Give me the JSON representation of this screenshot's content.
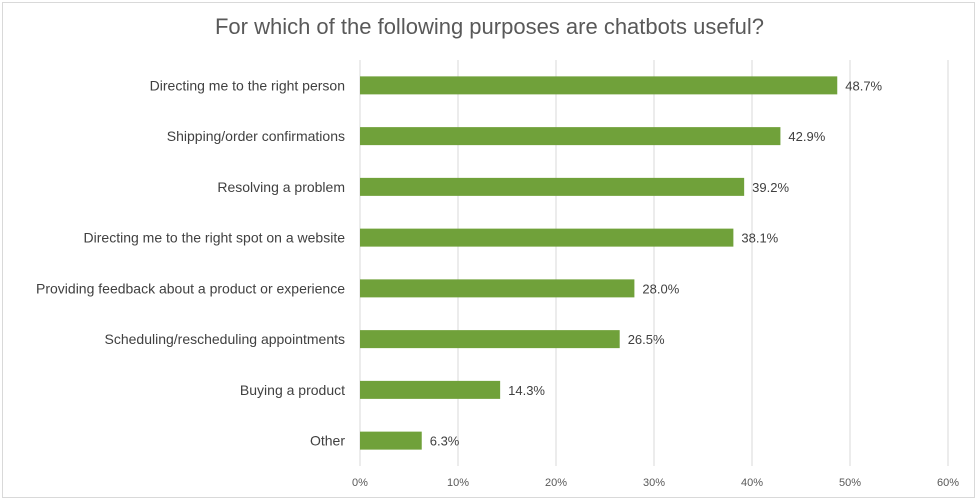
{
  "chart_data": {
    "type": "bar",
    "orientation": "horizontal",
    "title": "For which of the following purposes are chatbots useful?",
    "categories": [
      "Directing me to the right person",
      "Shipping/order confirmations",
      "Resolving a problem",
      "Directing me to the right spot on a website",
      "Providing feedback about a product or experience",
      "Scheduling/rescheduling appointments",
      "Buying a product",
      "Other"
    ],
    "values": [
      48.7,
      42.9,
      39.2,
      38.1,
      28.0,
      26.5,
      14.3,
      6.3
    ],
    "data_labels": [
      "48.7%",
      "42.9%",
      "39.2%",
      "38.1%",
      "28.0%",
      "26.5%",
      "14.3%",
      "6.3%"
    ],
    "x_ticks": [
      0,
      10,
      20,
      30,
      40,
      50,
      60
    ],
    "x_tick_labels": [
      "0%",
      "10%",
      "20%",
      "30%",
      "40%",
      "50%",
      "60%"
    ],
    "xlim": [
      0,
      60
    ],
    "grid": true,
    "legend": "none",
    "bar_color": "#70a13a",
    "xlabel": "",
    "ylabel": ""
  }
}
